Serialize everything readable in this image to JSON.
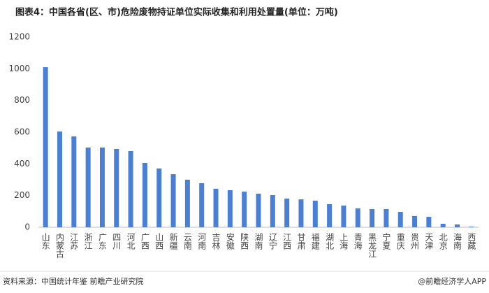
{
  "chart_data": {
    "type": "bar",
    "title": "图表4：中国各省(区、市)危险废物持证单位实际收集和利用处置量(单位：万吨)",
    "source": "资料来源：中国统计年鉴 前瞻产业研究院",
    "credit": "@前瞻经济学人APP",
    "categories": [
      "山东",
      "内蒙古",
      "江苏",
      "浙江",
      "广东",
      "四川",
      "河北",
      "广西",
      "山西",
      "新疆",
      "云南",
      "河南",
      "吉林",
      "安徽",
      "陕西",
      "湖南",
      "辽宁",
      "江西",
      "甘肃",
      "福建",
      "湖北",
      "上海",
      "青海",
      "黑龙江",
      "宁夏",
      "重庆",
      "贵州",
      "天津",
      "北京",
      "海南",
      "西藏"
    ],
    "values": [
      1010,
      604,
      573,
      503,
      503,
      494,
      481,
      406,
      371,
      335,
      300,
      278,
      243,
      234,
      225,
      212,
      203,
      181,
      176,
      168,
      146,
      137,
      119,
      115,
      115,
      97,
      71,
      66,
      22,
      18,
      4
    ],
    "color": "#4a7fd4",
    "ylim": [
      0,
      1200
    ],
    "yticks": [
      0,
      200,
      400,
      600,
      800,
      1000,
      1200
    ],
    "grid": false
  }
}
